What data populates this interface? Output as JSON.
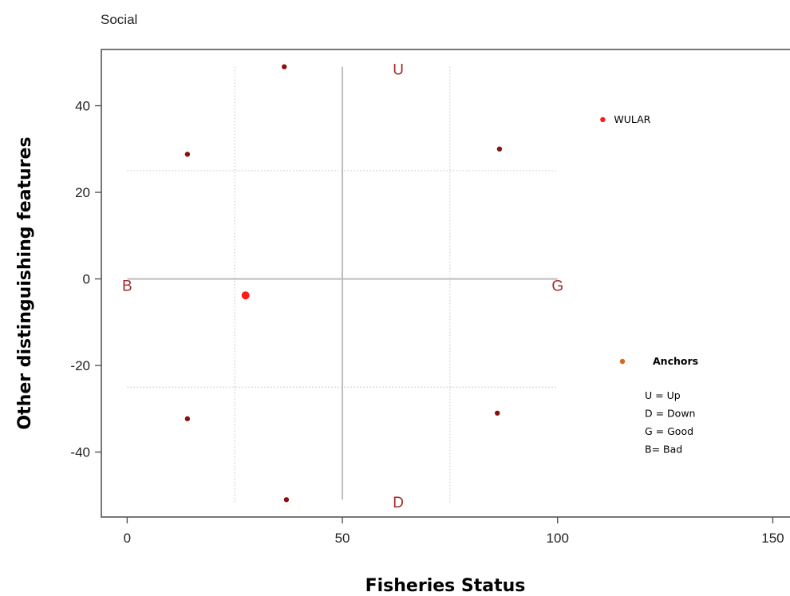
{
  "chart_data": {
    "type": "scatter",
    "title": "Social",
    "xlabel": "Fisheries Status",
    "ylabel": "Other distinguishing features",
    "xlim": [
      -6,
      154
    ],
    "ylim": [
      -55,
      53
    ],
    "x_ticks": [
      0,
      50,
      100,
      150
    ],
    "y_ticks": [
      -40,
      -20,
      0,
      20,
      40
    ],
    "reference_lines": {
      "solid": [
        {
          "axis": "x",
          "value": 50,
          "from": -51,
          "to": 49
        },
        {
          "axis": "y",
          "value": 0,
          "from": 0,
          "to": 100
        }
      ],
      "dotted": [
        {
          "axis": "x",
          "value": 25,
          "from": -52,
          "to": 49
        },
        {
          "axis": "x",
          "value": 75,
          "from": -52,
          "to": 49
        },
        {
          "axis": "y",
          "value": 25,
          "from": 0,
          "to": 100
        },
        {
          "axis": "y",
          "value": -25,
          "from": 0,
          "to": 100
        }
      ]
    },
    "anchor_labels": [
      {
        "label": "U",
        "x": 63,
        "y": 48.5
      },
      {
        "label": "D",
        "x": 63,
        "y": -51.5
      },
      {
        "label": "G",
        "x": 100,
        "y": -1.5
      },
      {
        "label": "B",
        "x": 0,
        "y": -1.5
      }
    ],
    "series": [
      {
        "color": "#8b1010",
        "points": [
          {
            "x": 36.5,
            "y": 49
          },
          {
            "x": 14,
            "y": 28.8
          },
          {
            "x": 86.5,
            "y": 30
          },
          {
            "x": 14,
            "y": -32.3
          },
          {
            "x": 86,
            "y": -31
          },
          {
            "x": 37,
            "y": -51
          }
        ]
      },
      {
        "color": "#ff1a1a",
        "points": [
          {
            "x": 110.5,
            "y": 36.8,
            "label": "WULAR"
          },
          {
            "x": 27.5,
            "y": -3.8
          }
        ]
      }
    ],
    "legend": {
      "position": "right",
      "title": "Anchors",
      "marker_color": "#d2691e",
      "items": [
        "U = Up",
        "D = Down",
        "G = Good",
        "B= Bad"
      ]
    }
  }
}
